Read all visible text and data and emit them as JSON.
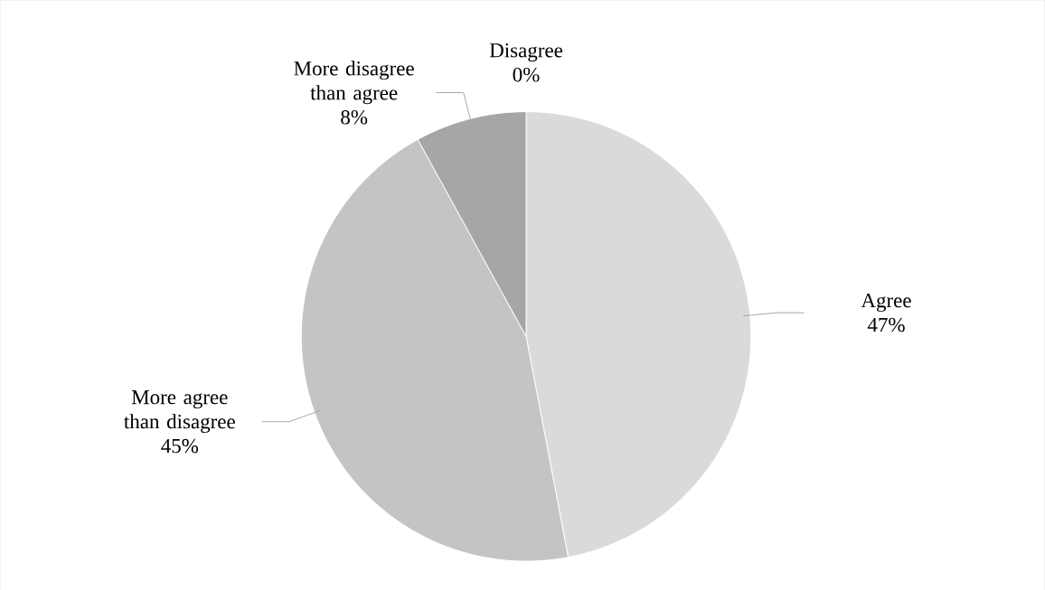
{
  "chart_data": {
    "type": "pie",
    "categories": [
      "Agree",
      "More agree than disagree",
      "More disagree than agree",
      "Disagree"
    ],
    "values": [
      47,
      45,
      8,
      0
    ],
    "value_labels": [
      "47%",
      "45%",
      "8%",
      "0%"
    ],
    "colors": [
      "#dadadb",
      "#c4c4c4",
      "#a6a6a6",
      "#595959"
    ]
  }
}
